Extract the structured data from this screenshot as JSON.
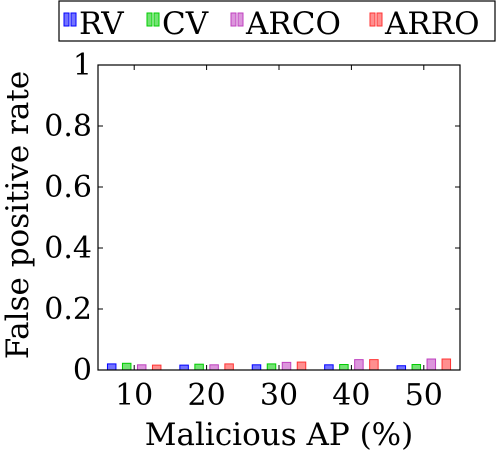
{
  "chart_data": {
    "type": "bar",
    "title": "",
    "xlabel": "Malicious AP (%)",
    "ylabel": "False positive rate",
    "categories": [
      "10",
      "20",
      "30",
      "40",
      "50"
    ],
    "ylim": [
      0,
      1
    ],
    "yticks": [
      0,
      0.2,
      0.4,
      0.6,
      0.8,
      1
    ],
    "ytick_labels": [
      "0",
      "0.2",
      "0.4",
      "0.6",
      "0.8",
      "1"
    ],
    "grid": false,
    "legend_position": "top",
    "series": [
      {
        "name": "RV",
        "color": "#0000ff",
        "values": [
          0.02,
          0.016,
          0.017,
          0.017,
          0.014
        ]
      },
      {
        "name": "CV",
        "color": "#00cc00",
        "values": [
          0.022,
          0.019,
          0.02,
          0.018,
          0.018
        ]
      },
      {
        "name": "ARCO",
        "color": "#bf40bf",
        "values": [
          0.017,
          0.017,
          0.025,
          0.034,
          0.036
        ]
      },
      {
        "name": "ARRO",
        "color": "#ff3333",
        "values": [
          0.016,
          0.02,
          0.026,
          0.034,
          0.036
        ]
      }
    ]
  }
}
